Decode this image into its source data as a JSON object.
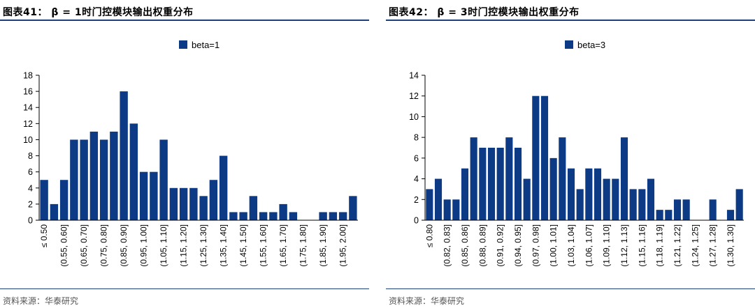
{
  "source_text": "资料来源：华泰研究",
  "chart_data": [
    {
      "type": "bar",
      "title": "图表41：  β = 1时门控模块输出权重分布",
      "legend": "beta=1",
      "legend_position": "top-center",
      "color": "#0d3a84",
      "categories": [
        "≤ 0.50",
        "",
        "(0.55, 0.60]",
        "",
        "(0.65, 0.70]",
        "",
        "(0.75, 0.80]",
        "",
        "(0.85, 0.90]",
        "",
        "(0.95, 1.00]",
        "",
        "(1.05, 1.10]",
        "",
        "(1.15, 1.20]",
        "",
        "(1.25, 1.30]",
        "",
        "(1.35, 1.40]",
        "",
        "(1.45, 1.50]",
        "",
        "(1.55, 1.60]",
        "",
        "(1.65, 1.70]",
        "",
        "(1.75, 1.80]",
        "",
        "(1.85, 1.90]",
        "",
        "(1.95, 2.00]",
        ""
      ],
      "values": [
        5,
        2,
        5,
        10,
        10,
        11,
        10,
        11,
        16,
        12,
        6,
        6,
        10,
        4,
        4,
        4,
        3,
        5,
        8,
        1,
        1,
        3,
        1,
        1,
        2,
        1,
        0,
        0,
        1,
        1,
        1,
        3
      ],
      "ylim": [
        0,
        18
      ],
      "yticks": [
        0,
        2,
        4,
        6,
        8,
        10,
        12,
        14,
        16,
        18
      ]
    },
    {
      "type": "bar",
      "title": "图表42：  β = 3时门控模块输出权重分布",
      "legend": "beta=3",
      "legend_position": "top-center",
      "color": "#0d3a84",
      "categories": [
        "≤ 0.80",
        "",
        "(0.82, 0.83]",
        "",
        "(0.85, 0.86]",
        "",
        "(0.88, 0.89]",
        "",
        "(0.91, 0.92]",
        "",
        "(0.94, 0.95]",
        "",
        "(0.97, 0.98]",
        "",
        "(1.00, 1.01]",
        "",
        "(1.03, 1.04]",
        "",
        "(1.06, 1.07]",
        "",
        "(1.09, 1.10]",
        "",
        "(1.12, 1.13]",
        "",
        "(1.15, 1.16]",
        "",
        "(1.18, 1.19]",
        "",
        "(1.21, 1.22]",
        "",
        "(1.24, 1.25]",
        "",
        "(1.27, 1.28]",
        "",
        "(1.30, 1.30]",
        ""
      ],
      "values": [
        3,
        4,
        2,
        2,
        5,
        8,
        7,
        7,
        7,
        8,
        7,
        4,
        12,
        12,
        6,
        8,
        5,
        3,
        5,
        5,
        4,
        4,
        8,
        3,
        3,
        4,
        1,
        1,
        2,
        2,
        0,
        0,
        2,
        0,
        1,
        3
      ],
      "ylim": [
        0,
        14
      ],
      "yticks": [
        0,
        2,
        4,
        6,
        8,
        10,
        12,
        14
      ]
    }
  ]
}
